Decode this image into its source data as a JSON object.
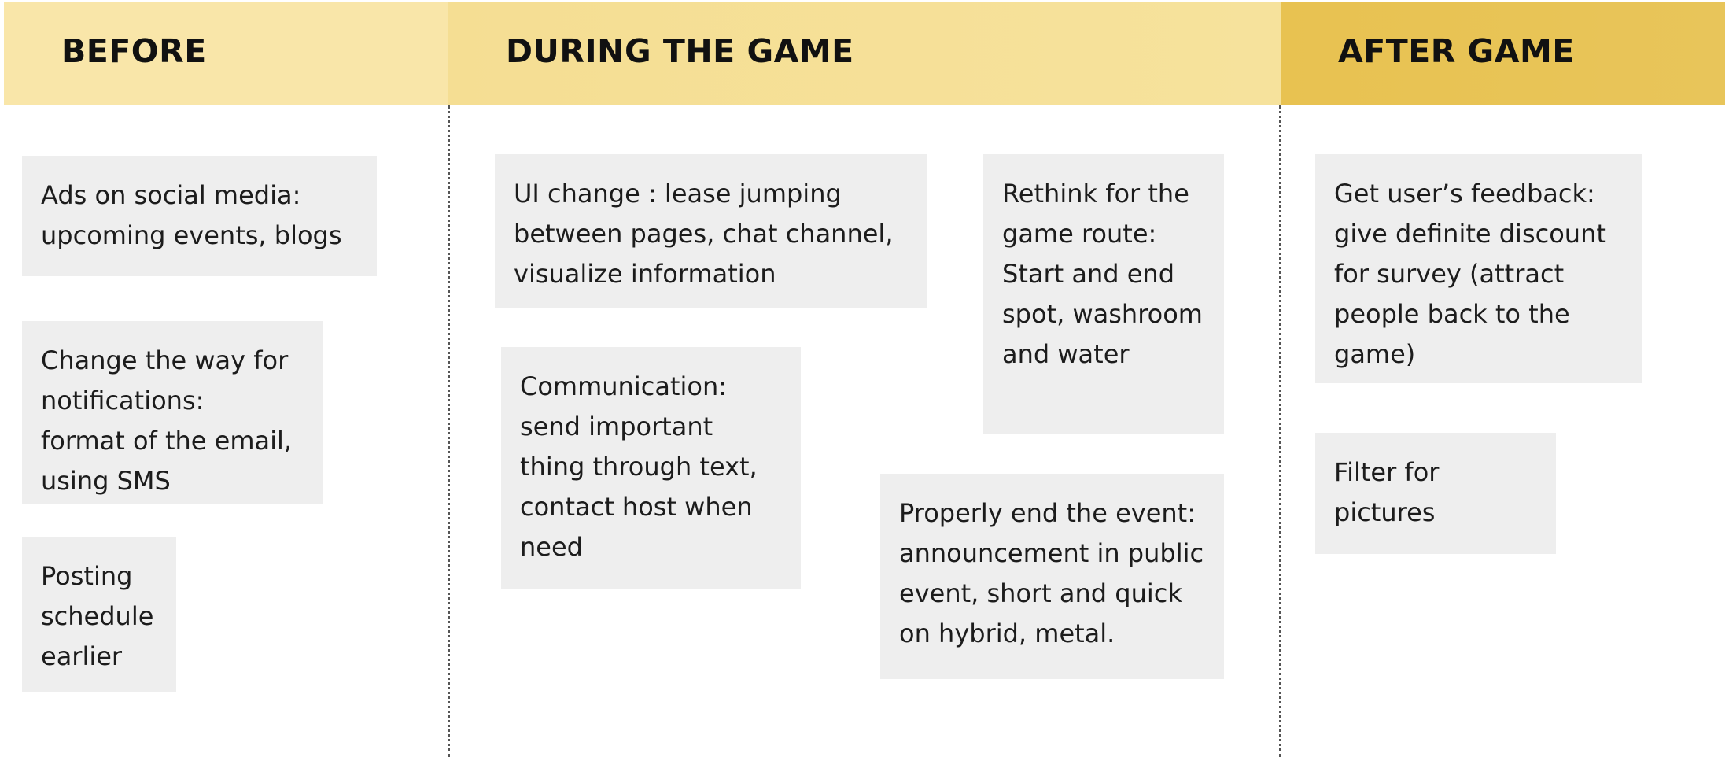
{
  "headers": {
    "before": "BEFORE",
    "during": "DURING THE GAME",
    "after": "AFTER GAME"
  },
  "notes": {
    "before_ads": "Ads on social media:\nupcoming events, blogs",
    "before_notifications": "Change the way for\nnotifications:\nformat of the email,\nusing SMS",
    "before_posting": "Posting\nschedule\nearlier",
    "during_ui": "UI change : lease jumping\nbetween pages, chat channel,\nvisualize information",
    "during_communication": "Communication:\nsend important\nthing through text,\ncontact host when\nneed",
    "during_route": "Rethink for the\ngame route:\nStart and end\nspot, washroom\nand water",
    "during_end": "Properly end the event:\nannouncement in public\nevent, short and quick\non hybrid, metal.",
    "after_feedback": "Get user’s feedback:\ngive definite discount\nfor survey (attract\npeople back to the\ngame)",
    "after_filter": "Filter for\npictures"
  },
  "colors": {
    "before_header": "#f9e6a9",
    "during_header": "#f5de93",
    "after_header": "#e8c251",
    "note_background": "#eeeeee"
  }
}
